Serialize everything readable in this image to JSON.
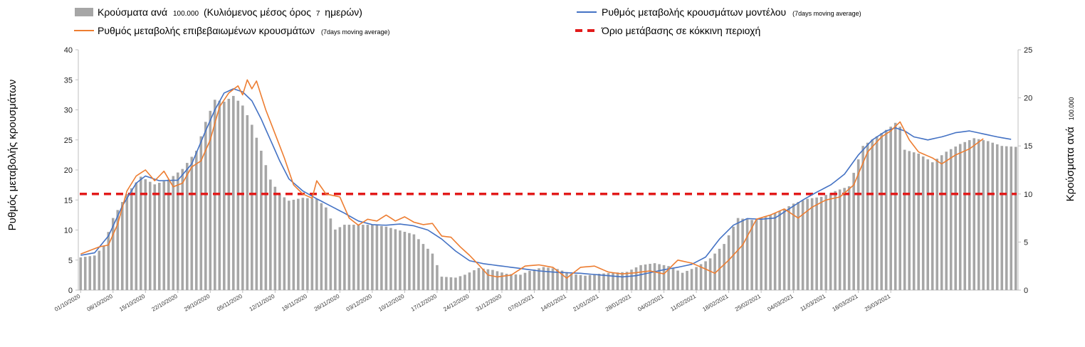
{
  "chart_data": {
    "type": "bar",
    "legend": {
      "bars_label": "Κρούσματα ανά",
      "bars_label_small": "100.000",
      "bars_label_tail": "(Κυλιόμενος μέσος όρος",
      "bars_label_small2": "7",
      "bars_label_tail2": "ημερών)",
      "model_label": "Ρυθμός μεταβολής κρουσμάτων μοντέλου",
      "model_label_small": "(7days moving average)",
      "confirmed_label": "Ρυθμός μεταβολής επιβεβαιωμένων κρουσμάτων",
      "confirmed_label_small": "(7days moving average)",
      "threshold_label": "Όριο μετάβασης σε κόκκινη περιοχή"
    },
    "y_left_label": "Ρυθμός μεταβολής κρουσμάτων",
    "y_right_label": "Κρούσματα ανά",
    "y_right_label_small": "100.000",
    "y_left_ticks": [
      "0",
      "5",
      "10",
      "15",
      "20",
      "25",
      "30",
      "35",
      "40"
    ],
    "y_right_ticks": [
      "0",
      "5",
      "10",
      "15",
      "20",
      "25"
    ],
    "ylim_left": [
      0,
      40
    ],
    "ylim_right": [
      0,
      25
    ],
    "threshold": 16,
    "x_ticks": [
      "01/10/2020",
      "08/10/2020",
      "15/10/2020",
      "22/10/2020",
      "29/10/2020",
      "05/11/2020",
      "12/11/2020",
      "19/11/2020",
      "26/11/2020",
      "03/12/2020",
      "10/12/2020",
      "17/12/2020",
      "24/12/2020",
      "31/12/2020",
      "07/01/2021",
      "14/01/2021",
      "21/01/2021",
      "28/01/2021",
      "04/02/2021",
      "11/02/2021",
      "18/02/2021",
      "25/02/2021",
      "04/03/2021",
      "11/03/2021",
      "18/03/2021",
      "25/03/2021"
    ],
    "series": [
      {
        "name": "Κρούσματα ανά 100.000",
        "axis": "right",
        "kind": "bar",
        "color": "#a6a6a6",
        "key_points": [
          [
            0,
            3.4
          ],
          [
            3,
            3.6
          ],
          [
            5,
            4.6
          ],
          [
            7,
            7.5
          ],
          [
            10,
            10
          ],
          [
            13,
            11.8
          ],
          [
            16,
            11
          ],
          [
            19,
            11.5
          ],
          [
            22,
            12.6
          ],
          [
            25,
            14.5
          ],
          [
            27,
            17.5
          ],
          [
            29,
            19.8
          ],
          [
            31,
            19.6
          ],
          [
            33,
            20.2
          ],
          [
            35,
            19.2
          ],
          [
            37,
            17.2
          ],
          [
            39,
            14.5
          ],
          [
            41,
            11.5
          ],
          [
            43,
            10
          ],
          [
            45,
            9.3
          ],
          [
            48,
            9.6
          ],
          [
            51,
            9.5
          ],
          [
            53,
            8.6
          ],
          [
            55,
            6.3
          ],
          [
            57,
            6.8
          ],
          [
            60,
            6.8
          ],
          [
            63,
            6.8
          ],
          [
            66,
            6.6
          ],
          [
            69,
            6.2
          ],
          [
            72,
            5.8
          ],
          [
            74,
            4.8
          ],
          [
            76,
            3.8
          ],
          [
            78,
            1.4
          ],
          [
            81,
            1.3
          ],
          [
            83,
            1.6
          ],
          [
            86,
            2.3
          ],
          [
            89,
            2.1
          ],
          [
            92,
            1.7
          ],
          [
            95,
            1.6
          ],
          [
            97,
            2
          ],
          [
            100,
            2.4
          ],
          [
            103,
            2.2
          ],
          [
            106,
            1.7
          ],
          [
            109,
            1.5
          ],
          [
            112,
            1.7
          ],
          [
            115,
            1.8
          ],
          [
            118,
            1.9
          ],
          [
            121,
            2.6
          ],
          [
            124,
            2.8
          ],
          [
            127,
            2.5
          ],
          [
            130,
            1.8
          ],
          [
            133,
            2.4
          ],
          [
            136,
            3.3
          ],
          [
            139,
            4.8
          ],
          [
            142,
            7.5
          ],
          [
            145,
            7.3
          ],
          [
            148,
            7.6
          ],
          [
            151,
            8.2
          ],
          [
            154,
            9
          ],
          [
            157,
            9.5
          ],
          [
            160,
            9.7
          ],
          [
            163,
            10.3
          ],
          [
            166,
            10.8
          ],
          [
            169,
            15
          ],
          [
            172,
            16
          ],
          [
            175,
            17
          ],
          [
            176,
            17.4
          ],
          [
            177,
            17
          ],
          [
            178,
            14.6
          ],
          [
            181,
            14.2
          ],
          [
            184,
            13.3
          ],
          [
            187,
            14.4
          ],
          [
            190,
            15.2
          ],
          [
            193,
            15.8
          ],
          [
            196,
            15.5
          ],
          [
            199,
            15
          ],
          [
            202,
            14.9
          ]
        ]
      },
      {
        "name": "Ρυθμός μεταβολής κρουσμάτων μοντέλου",
        "axis": "left",
        "kind": "line",
        "color": "#4472c4",
        "key_points": [
          [
            0,
            5.8
          ],
          [
            3,
            6.2
          ],
          [
            6,
            9
          ],
          [
            9,
            14
          ],
          [
            12,
            17.8
          ],
          [
            14,
            19
          ],
          [
            17,
            18.2
          ],
          [
            21,
            18.3
          ],
          [
            24,
            21
          ],
          [
            27,
            26.5
          ],
          [
            29,
            30
          ],
          [
            31,
            32.8
          ],
          [
            33,
            33.5
          ],
          [
            35,
            33
          ],
          [
            37,
            31.5
          ],
          [
            39,
            28.5
          ],
          [
            41,
            25
          ],
          [
            43,
            21.5
          ],
          [
            45,
            18.5
          ],
          [
            48,
            16.5
          ],
          [
            51,
            15.2
          ],
          [
            54,
            14
          ],
          [
            57,
            12.8
          ],
          [
            60,
            11.5
          ],
          [
            63,
            10.9
          ],
          [
            66,
            10.8
          ],
          [
            69,
            11
          ],
          [
            72,
            10.7
          ],
          [
            75,
            10
          ],
          [
            78,
            8.5
          ],
          [
            81,
            6.5
          ],
          [
            84,
            4.9
          ],
          [
            87,
            4.4
          ],
          [
            90,
            4.1
          ],
          [
            93,
            3.8
          ],
          [
            96,
            3.5
          ],
          [
            99,
            3.2
          ],
          [
            102,
            3
          ],
          [
            105,
            2.9
          ],
          [
            108,
            2.8
          ],
          [
            111,
            2.6
          ],
          [
            114,
            2.4
          ],
          [
            117,
            2.2
          ],
          [
            120,
            2.4
          ],
          [
            123,
            2.9
          ],
          [
            126,
            3.4
          ],
          [
            129,
            3.8
          ],
          [
            132,
            4.3
          ],
          [
            135,
            5.5
          ],
          [
            138,
            8.5
          ],
          [
            141,
            10.8
          ],
          [
            144,
            11.9
          ],
          [
            147,
            11.8
          ],
          [
            150,
            12
          ],
          [
            153,
            13.5
          ],
          [
            156,
            15
          ],
          [
            159,
            16.3
          ],
          [
            162,
            17.5
          ],
          [
            165,
            19.3
          ],
          [
            168,
            22.5
          ],
          [
            171,
            25
          ],
          [
            174,
            26.5
          ],
          [
            176,
            27
          ],
          [
            178,
            26.5
          ],
          [
            180,
            25.5
          ],
          [
            183,
            25
          ],
          [
            186,
            25.5
          ],
          [
            189,
            26.2
          ],
          [
            192,
            26.5
          ],
          [
            195,
            26
          ],
          [
            198,
            25.5
          ],
          [
            201,
            25.1
          ]
        ]
      },
      {
        "name": "Ρυθμός μεταβολής επιβεβαιωμένων κρουσμάτων",
        "axis": "left",
        "kind": "line",
        "color": "#ed7d31",
        "key_points": [
          [
            0,
            6
          ],
          [
            2,
            6.6
          ],
          [
            4,
            7.2
          ],
          [
            6,
            7.5
          ],
          [
            8,
            11
          ],
          [
            10,
            16.5
          ],
          [
            12,
            19
          ],
          [
            14,
            20
          ],
          [
            16,
            18.2
          ],
          [
            18,
            19.8
          ],
          [
            20,
            17.2
          ],
          [
            22,
            17.8
          ],
          [
            24,
            20.5
          ],
          [
            26,
            21.5
          ],
          [
            28,
            25
          ],
          [
            30,
            30.5
          ],
          [
            32,
            32.8
          ],
          [
            34,
            34
          ],
          [
            35,
            32.5
          ],
          [
            36,
            35
          ],
          [
            37,
            33.5
          ],
          [
            38,
            34.8
          ],
          [
            40,
            30
          ],
          [
            42,
            26
          ],
          [
            44,
            22
          ],
          [
            46,
            17.5
          ],
          [
            48,
            16
          ],
          [
            50,
            15.3
          ],
          [
            51,
            18.2
          ],
          [
            53,
            16
          ],
          [
            56,
            15.5
          ],
          [
            58,
            12
          ],
          [
            60,
            10.8
          ],
          [
            62,
            11.8
          ],
          [
            64,
            11.5
          ],
          [
            66,
            12.5
          ],
          [
            68,
            11.5
          ],
          [
            70,
            12.2
          ],
          [
            72,
            11.3
          ],
          [
            74,
            10.9
          ],
          [
            76,
            11.1
          ],
          [
            78,
            9
          ],
          [
            80,
            8.8
          ],
          [
            82,
            7.2
          ],
          [
            84,
            5.8
          ],
          [
            86,
            4.2
          ],
          [
            88,
            2.5
          ],
          [
            90,
            2.2
          ],
          [
            93,
            2.5
          ],
          [
            96,
            4
          ],
          [
            99,
            4.2
          ],
          [
            102,
            3.8
          ],
          [
            105,
            2
          ],
          [
            108,
            3.8
          ],
          [
            111,
            4
          ],
          [
            114,
            3
          ],
          [
            117,
            2.7
          ],
          [
            120,
            2.9
          ],
          [
            123,
            3.2
          ],
          [
            126,
            2.7
          ],
          [
            129,
            5
          ],
          [
            132,
            4.5
          ],
          [
            135,
            3.5
          ],
          [
            137,
            2.8
          ],
          [
            140,
            5
          ],
          [
            143,
            7.5
          ],
          [
            146,
            11.8
          ],
          [
            149,
            12.5
          ],
          [
            152,
            13.5
          ],
          [
            155,
            12
          ],
          [
            158,
            13.8
          ],
          [
            161,
            15
          ],
          [
            164,
            15.5
          ],
          [
            167,
            17.5
          ],
          [
            170,
            23
          ],
          [
            173,
            25.5
          ],
          [
            175,
            26.5
          ],
          [
            177,
            28
          ],
          [
            179,
            25
          ],
          [
            181,
            23
          ],
          [
            184,
            22
          ],
          [
            186,
            21
          ],
          [
            189,
            22.5
          ],
          [
            192,
            23.5
          ],
          [
            195,
            25.2
          ]
        ]
      }
    ]
  }
}
